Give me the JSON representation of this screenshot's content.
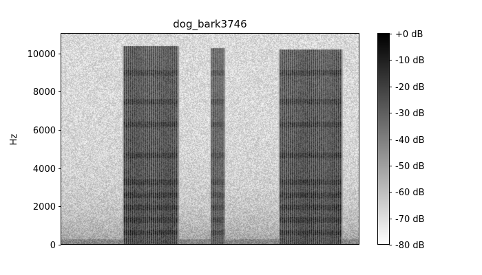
{
  "chart_data": {
    "type": "heatmap",
    "title": "dog_bark3746",
    "xlabel": "",
    "ylabel": "Hz",
    "ylim": [
      0,
      11025
    ],
    "y_ticks": [
      0,
      2000,
      4000,
      6000,
      8000,
      10000
    ],
    "y_tick_labels": [
      "0",
      "2000",
      "4000",
      "6000",
      "8000",
      "10000"
    ],
    "x_ticks_visible": false,
    "colormap": "gray_r",
    "colorbar": {
      "range_db": [
        -80,
        0
      ],
      "ticks": [
        0,
        -10,
        -20,
        -30,
        -40,
        -50,
        -60,
        -70,
        -80
      ],
      "labels": [
        "+0 dB",
        "-10 dB",
        "-20 dB",
        "-30 dB",
        "-40 dB",
        "-50 dB",
        "-60 dB",
        "-70 dB",
        "-80 dB"
      ],
      "color_top": "#000000",
      "color_bottom": "#ffffff"
    },
    "events": [
      {
        "start_frac": 0.21,
        "end_frac": 0.39,
        "max_freq_hz": 10400,
        "peak_db": -18
      },
      {
        "start_frac": 0.505,
        "end_frac": 0.545,
        "max_freq_hz": 10300,
        "peak_db": -22
      },
      {
        "start_frac": 0.735,
        "end_frac": 0.94,
        "max_freq_hz": 10200,
        "peak_db": -18
      }
    ],
    "background_db": -68
  }
}
